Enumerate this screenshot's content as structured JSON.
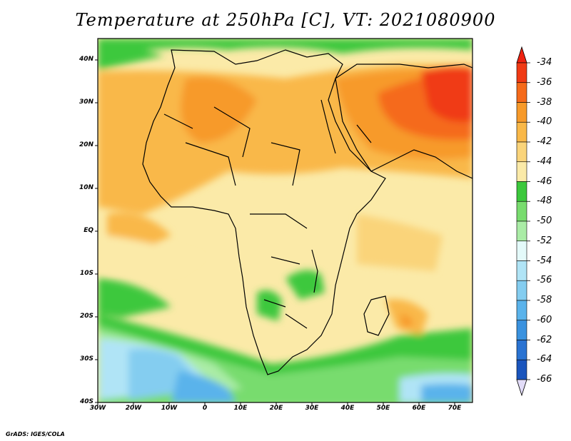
{
  "title": "Temperature at 250hPa [C], VT: 2021080900",
  "credit": "GrADS: IGES/COLA",
  "map": {
    "projection": "lat-lon",
    "lon_range": [
      -30,
      75
    ],
    "lat_range": [
      -40,
      45
    ],
    "lat_ticks": [
      "40N",
      "30N",
      "20N",
      "10N",
      "EQ",
      "10S",
      "20S",
      "30S",
      "40S"
    ],
    "lon_ticks": [
      "30W",
      "20W",
      "10W",
      "0",
      "10E",
      "20E",
      "30E",
      "40E",
      "50E",
      "60E",
      "70E"
    ],
    "region_visible": "Africa, Middle East, Arabian Peninsula, South Asia, Madagascar"
  },
  "colorbar": {
    "labels": [
      "-34",
      "-36",
      "-38",
      "-40",
      "-42",
      "-44",
      "-46",
      "-48",
      "-50",
      "-52",
      "-54",
      "-56",
      "-58",
      "-60",
      "-62",
      "-64",
      "-66"
    ],
    "colors": [
      "#f03a14",
      "#f56a1a",
      "#f79a2a",
      "#f9b848",
      "#fad47a",
      "#fbeaa8",
      "#3cc83c",
      "#78dc6e",
      "#aaeca6",
      "#e4fafa",
      "#b0e4f6",
      "#84cdf0",
      "#5ab3eb",
      "#3a92df",
      "#2a73d2",
      "#1a55bd",
      "#0a2a8c"
    ],
    "end_colors": {
      "top": "#ee2210",
      "bottom": "#e2dcf8"
    }
  }
}
